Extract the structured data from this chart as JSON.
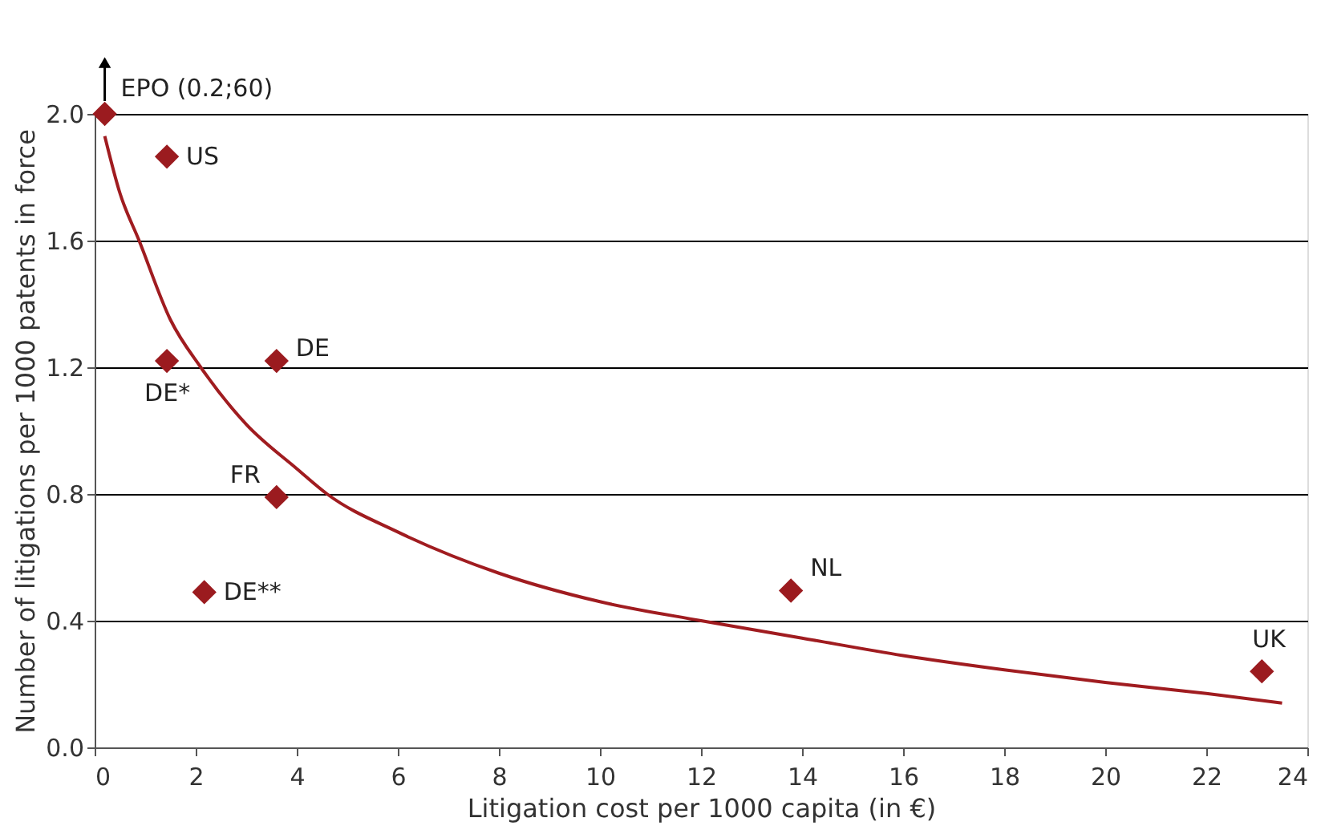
{
  "chart_data": {
    "type": "scatter",
    "xlabel": "Litigation cost per 1000 capita (in €)",
    "ylabel": "Number of litigations per 1000 patents in force",
    "xlim": [
      0,
      24
    ],
    "xticks": [
      0,
      2,
      4,
      6,
      8,
      10,
      12,
      14,
      16,
      18,
      20,
      22,
      24
    ],
    "ylim": [
      0,
      2.0
    ],
    "yticks": [
      {
        "value": 0,
        "label": "0.0"
      },
      0.4,
      0.8,
      1.2,
      1.6,
      {
        "value": 2,
        "label": "2.0"
      }
    ],
    "grid": "y",
    "series": [
      {
        "type": "scatter",
        "marker": "diamond",
        "color": "#9b1b1f",
        "x": [
          0.2,
          1.43,
          1.43,
          3.6,
          3.6,
          2.17,
          13.78,
          23.1
        ],
        "values": [
          2.0,
          1.865,
          1.22,
          1.22,
          0.79,
          0.49,
          0.495,
          0.24
        ]
      },
      {
        "type": "line",
        "color": "#a01c20",
        "x": [
          0.2,
          0.5,
          0.88,
          1.5,
          2.1,
          3,
          4,
          4.6,
          6,
          8,
          10,
          12,
          14,
          16,
          18,
          20,
          22,
          23.5
        ],
        "values": [
          1.93,
          1.75,
          1.6,
          1.35,
          1.2,
          1.02,
          0.88,
          0.8,
          0.68,
          0.55,
          0.46,
          0.4,
          0.345,
          0.29,
          0.245,
          0.205,
          0.17,
          0.14
        ]
      }
    ],
    "annotations": [
      {
        "text": "EPO (0.2;60)",
        "x": 0.2,
        "y": 2.0
      },
      {
        "text": "US",
        "x": 1.43,
        "y": 1.865
      },
      {
        "text": "DE*",
        "x": 1.43,
        "y": 1.22
      },
      {
        "text": "DE",
        "x": 3.6,
        "y": 1.22
      },
      {
        "text": "FR",
        "x": 3.6,
        "y": 0.79
      },
      {
        "text": "DE**",
        "x": 2.17,
        "y": 0.49
      },
      {
        "text": "NL",
        "x": 13.78,
        "y": 0.495
      },
      {
        "text": "UK",
        "x": 23.1,
        "y": 0.24
      }
    ]
  }
}
